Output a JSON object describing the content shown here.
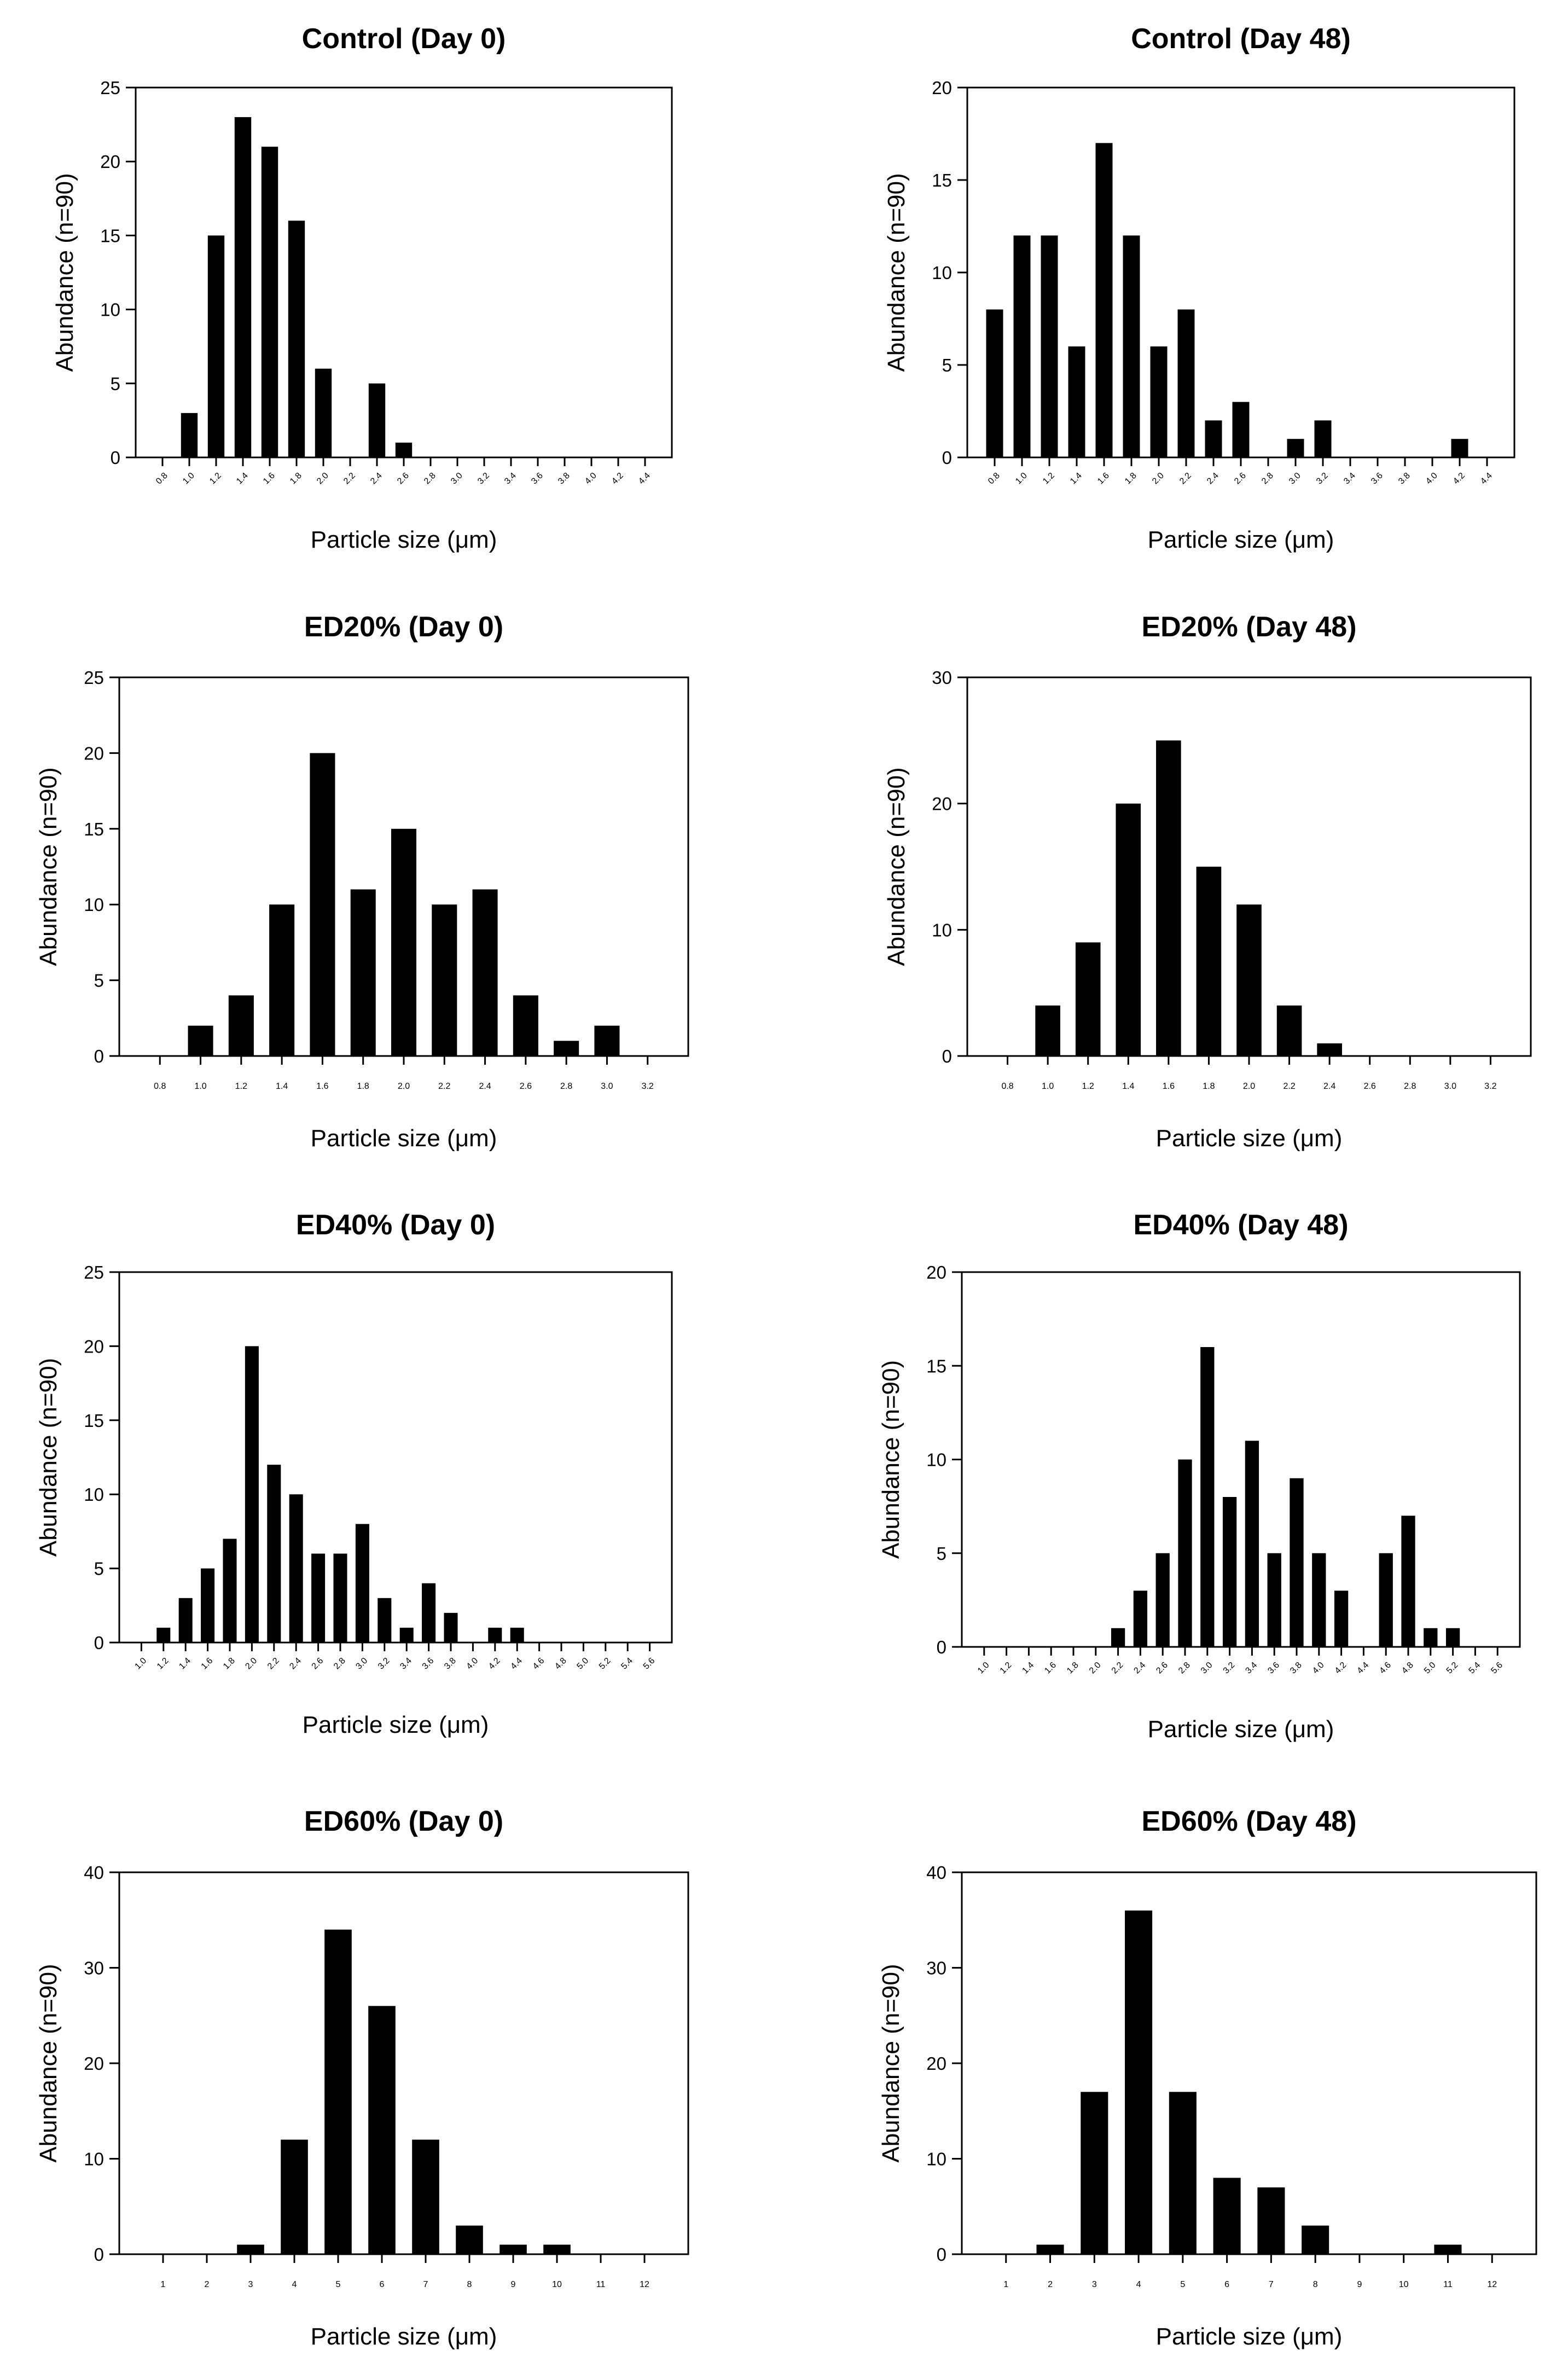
{
  "colors": {
    "bar": "#000000",
    "axis": "#000000",
    "background": "#ffffff"
  },
  "chart_data": [
    {
      "type": "bar",
      "title": "Control (Day 0)",
      "xlabel": "Particle size (μm)",
      "ylabel": "Abundance (n=90)",
      "categories": [
        "0.8",
        "1.0",
        "1.2",
        "1.4",
        "1.6",
        "1.8",
        "2.0",
        "2.2",
        "2.4",
        "2.6",
        "2.8",
        "3.0",
        "3.2",
        "3.4",
        "3.6",
        "3.8",
        "4.0",
        "4.2",
        "4.4"
      ],
      "values": [
        0,
        3,
        15,
        23,
        21,
        16,
        6,
        0,
        5,
        1,
        0,
        0,
        0,
        0,
        0,
        0,
        0,
        0,
        0
      ],
      "ylim": [
        0,
        25
      ],
      "yticks": [
        0,
        5,
        10,
        15,
        20,
        25
      ],
      "rotated_ticks": true
    },
    {
      "type": "bar",
      "title": "Control (Day 48)",
      "xlabel": "Particle size (μm)",
      "ylabel": "Abundance (n=90)",
      "categories": [
        "0.8",
        "1.0",
        "1.2",
        "1.4",
        "1.6",
        "1.8",
        "2.0",
        "2.2",
        "2.4",
        "2.6",
        "2.8",
        "3.0",
        "3.2",
        "3.4",
        "3.6",
        "3.8",
        "4.0",
        "4.2",
        "4.4"
      ],
      "values": [
        8,
        12,
        12,
        6,
        17,
        12,
        6,
        8,
        2,
        3,
        0,
        1,
        2,
        0,
        0,
        0,
        0,
        1,
        0
      ],
      "ylim": [
        0,
        20
      ],
      "yticks": [
        0,
        5,
        10,
        15,
        20
      ],
      "rotated_ticks": true
    },
    {
      "type": "bar",
      "title": "ED20% (Day 0)",
      "xlabel": "Particle size (μm)",
      "ylabel": "Abundance (n=90)",
      "categories": [
        "0.8",
        "1.0",
        "1.2",
        "1.4",
        "1.6",
        "1.8",
        "2.0",
        "2.2",
        "2.4",
        "2.6",
        "2.8",
        "3.0",
        "3.2"
      ],
      "values": [
        0,
        2,
        4,
        10,
        20,
        11,
        15,
        10,
        11,
        4,
        1,
        2,
        0
      ],
      "ylim": [
        0,
        25
      ],
      "yticks": [
        0,
        5,
        10,
        15,
        20,
        25
      ],
      "rotated_ticks": false
    },
    {
      "type": "bar",
      "title": "ED20% (Day 48)",
      "xlabel": "Particle size (μm)",
      "ylabel": "Abundance (n=90)",
      "categories": [
        "0.8",
        "1.0",
        "1.2",
        "1.4",
        "1.6",
        "1.8",
        "2.0",
        "2.2",
        "2.4",
        "2.6",
        "2.8",
        "3.0",
        "3.2"
      ],
      "values": [
        0,
        4,
        9,
        20,
        25,
        15,
        12,
        4,
        1,
        0,
        0,
        0,
        0
      ],
      "ylim": [
        0,
        30
      ],
      "yticks": [
        0,
        10,
        20,
        30
      ],
      "rotated_ticks": false
    },
    {
      "type": "bar",
      "title": "ED40% (Day 0)",
      "xlabel": "Particle size (μm)",
      "ylabel": "Abundance (n=90)",
      "categories": [
        "1.0",
        "1.2",
        "1.4",
        "1.6",
        "1.8",
        "2.0",
        "2.2",
        "2.4",
        "2.6",
        "2.8",
        "3.0",
        "3.2",
        "3.4",
        "3.6",
        "3.8",
        "4.0",
        "4.2",
        "4.4",
        "4.6",
        "4.8",
        "5.0",
        "5.2",
        "5.4",
        "5.6"
      ],
      "values": [
        0,
        1,
        3,
        5,
        7,
        20,
        12,
        10,
        6,
        6,
        8,
        3,
        1,
        4,
        2,
        0,
        1,
        1,
        0,
        0,
        0,
        0,
        0,
        0
      ],
      "ylim": [
        0,
        25
      ],
      "yticks": [
        0,
        5,
        10,
        15,
        20,
        25
      ],
      "rotated_ticks": true
    },
    {
      "type": "bar",
      "title": "ED40% (Day 48)",
      "xlabel": "Particle size (μm)",
      "ylabel": "Abundance (n=90)",
      "categories": [
        "1.0",
        "1.2",
        "1.4",
        "1.6",
        "1.8",
        "2.0",
        "2.2",
        "2.4",
        "2.6",
        "2.8",
        "3.0",
        "3.2",
        "3.4",
        "3.6",
        "3.8",
        "4.0",
        "4.2",
        "4.4",
        "4.6",
        "4.8",
        "5.0",
        "5.2",
        "5.4",
        "5.6"
      ],
      "values": [
        0,
        0,
        0,
        0,
        0,
        0,
        1,
        3,
        5,
        10,
        16,
        8,
        11,
        5,
        9,
        5,
        3,
        0,
        5,
        7,
        1,
        1,
        0,
        0
      ],
      "ylim": [
        0,
        20
      ],
      "yticks": [
        0,
        5,
        10,
        15,
        20
      ],
      "rotated_ticks": true
    },
    {
      "type": "bar",
      "title": "ED60% (Day 0)",
      "xlabel": "Particle size (μm)",
      "ylabel": "Abundance (n=90)",
      "categories": [
        "1",
        "2",
        "3",
        "4",
        "5",
        "6",
        "7",
        "8",
        "9",
        "10",
        "11",
        "12"
      ],
      "values": [
        0,
        0,
        1,
        12,
        34,
        26,
        12,
        3,
        1,
        1,
        0,
        0
      ],
      "ylim": [
        0,
        40
      ],
      "yticks": [
        0,
        10,
        20,
        30,
        40
      ],
      "rotated_ticks": false
    },
    {
      "type": "bar",
      "title": "ED60% (Day 48)",
      "xlabel": "Particle size (μm)",
      "ylabel": "Abundance (n=90)",
      "categories": [
        "1",
        "2",
        "3",
        "4",
        "5",
        "6",
        "7",
        "8",
        "9",
        "10",
        "11",
        "12"
      ],
      "values": [
        0,
        1,
        17,
        36,
        17,
        8,
        7,
        3,
        0,
        0,
        1,
        0
      ],
      "ylim": [
        0,
        40
      ],
      "yticks": [
        0,
        10,
        20,
        30,
        40
      ],
      "rotated_ticks": false
    }
  ]
}
